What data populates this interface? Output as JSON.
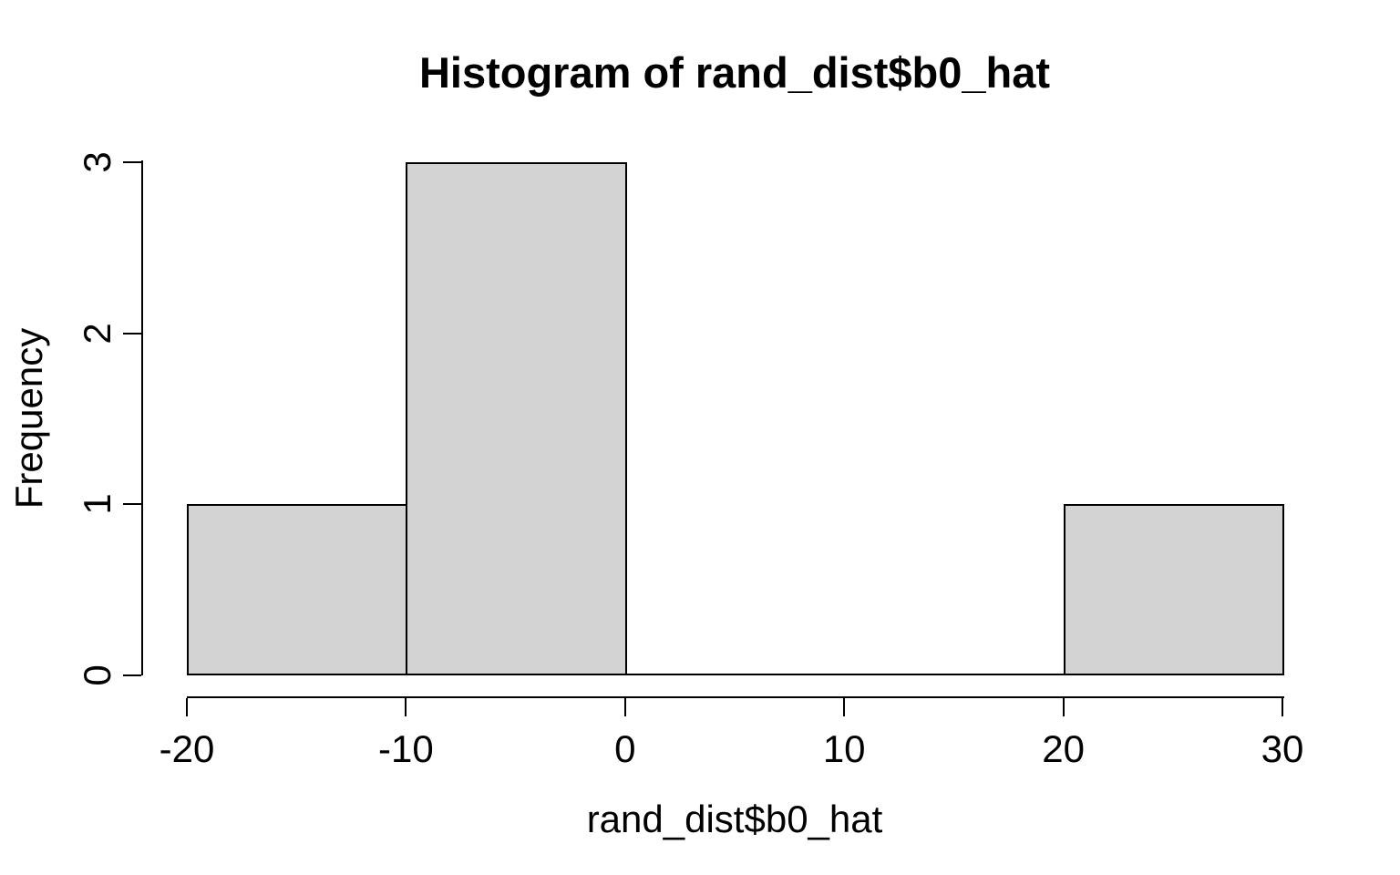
{
  "chart_data": {
    "type": "bar",
    "subtype": "histogram",
    "title": "Histogram of rand_dist$b0_hat",
    "xlabel": "rand_dist$b0_hat",
    "ylabel": "Frequency",
    "bins": [
      {
        "x0": -20,
        "x1": -10,
        "count": 1
      },
      {
        "x0": -10,
        "x1": 0,
        "count": 3
      },
      {
        "x0": 0,
        "x1": 10,
        "count": 0
      },
      {
        "x0": 10,
        "x1": 20,
        "count": 0
      },
      {
        "x0": 20,
        "x1": 30,
        "count": 1
      }
    ],
    "x_ticks": [
      -20,
      -10,
      0,
      10,
      20,
      30
    ],
    "y_ticks": [
      0,
      1,
      2,
      3
    ],
    "xlim": [
      -20,
      30
    ],
    "ylim": [
      0,
      3
    ],
    "grid": false,
    "legend": null,
    "colors": {
      "bar_fill": "#d3d3d3",
      "bar_border": "#000000",
      "axis": "#000000",
      "text": "#000000",
      "background": "#ffffff"
    }
  }
}
